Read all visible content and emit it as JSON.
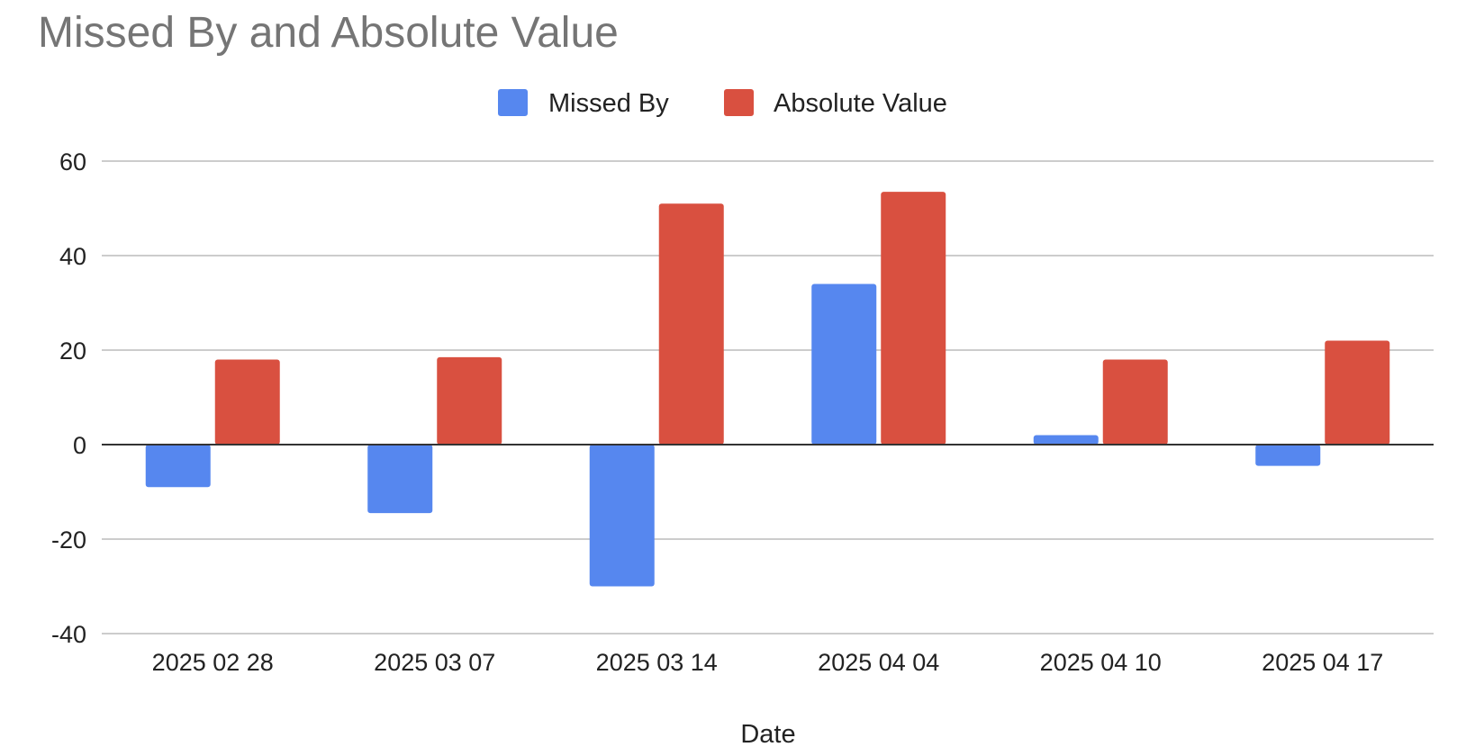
{
  "chart_data": {
    "type": "bar",
    "title": "Missed By and Absolute Value",
    "xlabel": "Date",
    "ylabel": "",
    "categories": [
      "2025 02 28",
      "2025 03 07",
      "2025 03 14",
      "2025 04 04",
      "2025 04 10",
      "2025 04 17"
    ],
    "series": [
      {
        "name": "Missed By",
        "color": "#5687EF",
        "values": [
          -9,
          -14.5,
          -30,
          34,
          2,
          -4.5
        ]
      },
      {
        "name": "Absolute Value",
        "color": "#D95040",
        "values": [
          18,
          18.5,
          51,
          53.5,
          18,
          22
        ]
      }
    ],
    "ylim": [
      -40,
      60
    ],
    "yticks": [
      60,
      40,
      20,
      0,
      -20,
      -40
    ],
    "grid": true,
    "legend_position": "top-center"
  }
}
